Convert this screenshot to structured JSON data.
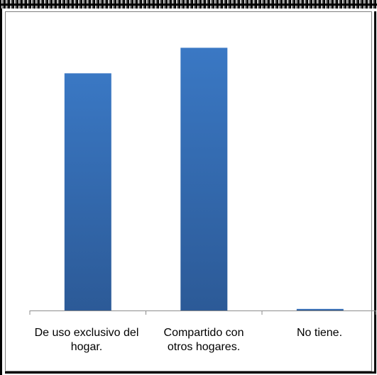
{
  "chart_data": {
    "type": "bar",
    "categories": [
      "De uso exclusivo del hogar.",
      "Compartido con otros hogares.",
      "No tiene."
    ],
    "values": [
      46.5,
      51.5,
      0.3
    ],
    "ylim": [
      0,
      56
    ],
    "title": "",
    "xlabel": "",
    "ylabel": "",
    "grid": false,
    "legend": "none",
    "bar_color": "#3a78c4",
    "bar_color_dark": "#2c5a97"
  },
  "labels": {
    "cat0_line1": "De uso exclusivo del",
    "cat0_line2": "hogar.",
    "cat1_line1": "Compartido con",
    "cat1_line2": "otros hogares.",
    "cat2_line1": "No tiene."
  }
}
